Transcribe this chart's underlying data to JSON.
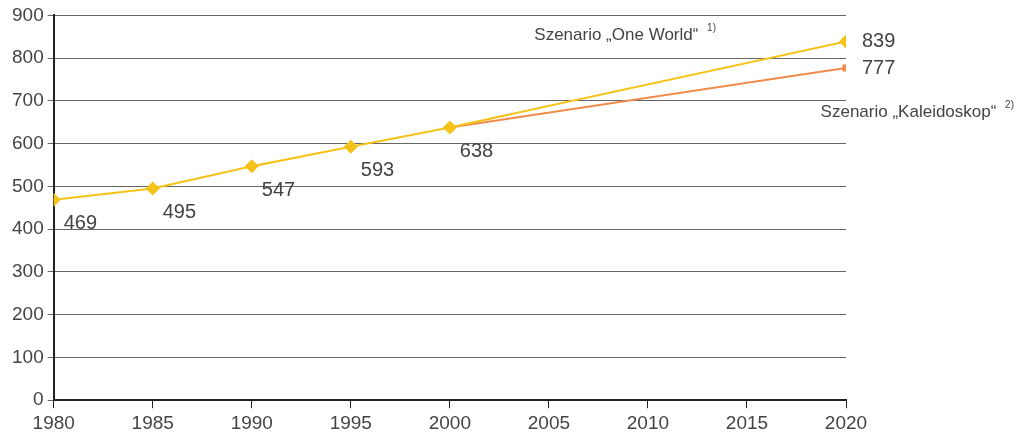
{
  "chart_data": {
    "type": "line",
    "xlim": [
      1980,
      2020
    ],
    "xticks": [
      1980,
      1985,
      1990,
      1995,
      2000,
      2005,
      2010,
      2015,
      2020
    ],
    "ylim": [
      0,
      900
    ],
    "yticks": [
      0,
      100,
      200,
      300,
      400,
      500,
      600,
      700,
      800,
      900
    ],
    "grid": "y",
    "legend": false,
    "line_style": "solid",
    "series": [
      {
        "name": "Szenario „One World“ $^{1)}$",
        "color": "#f5c218",
        "marker": "diamond",
        "x": [
          1980,
          1985,
          1990,
          1995,
          2000,
          2020
        ],
        "values": [
          469,
          495,
          547,
          593,
          638,
          839
        ],
        "value_labels": [
          "469",
          "495",
          "547",
          "593",
          "638",
          "839"
        ]
      },
      {
        "name": "Szenario „Kaleidoskop“ $^{2)}$",
        "color": "#f08a4b",
        "marker": "square",
        "x": [
          2000,
          2020
        ],
        "values": [
          638,
          777
        ],
        "value_labels": [
          null,
          "777"
        ]
      }
    ]
  }
}
